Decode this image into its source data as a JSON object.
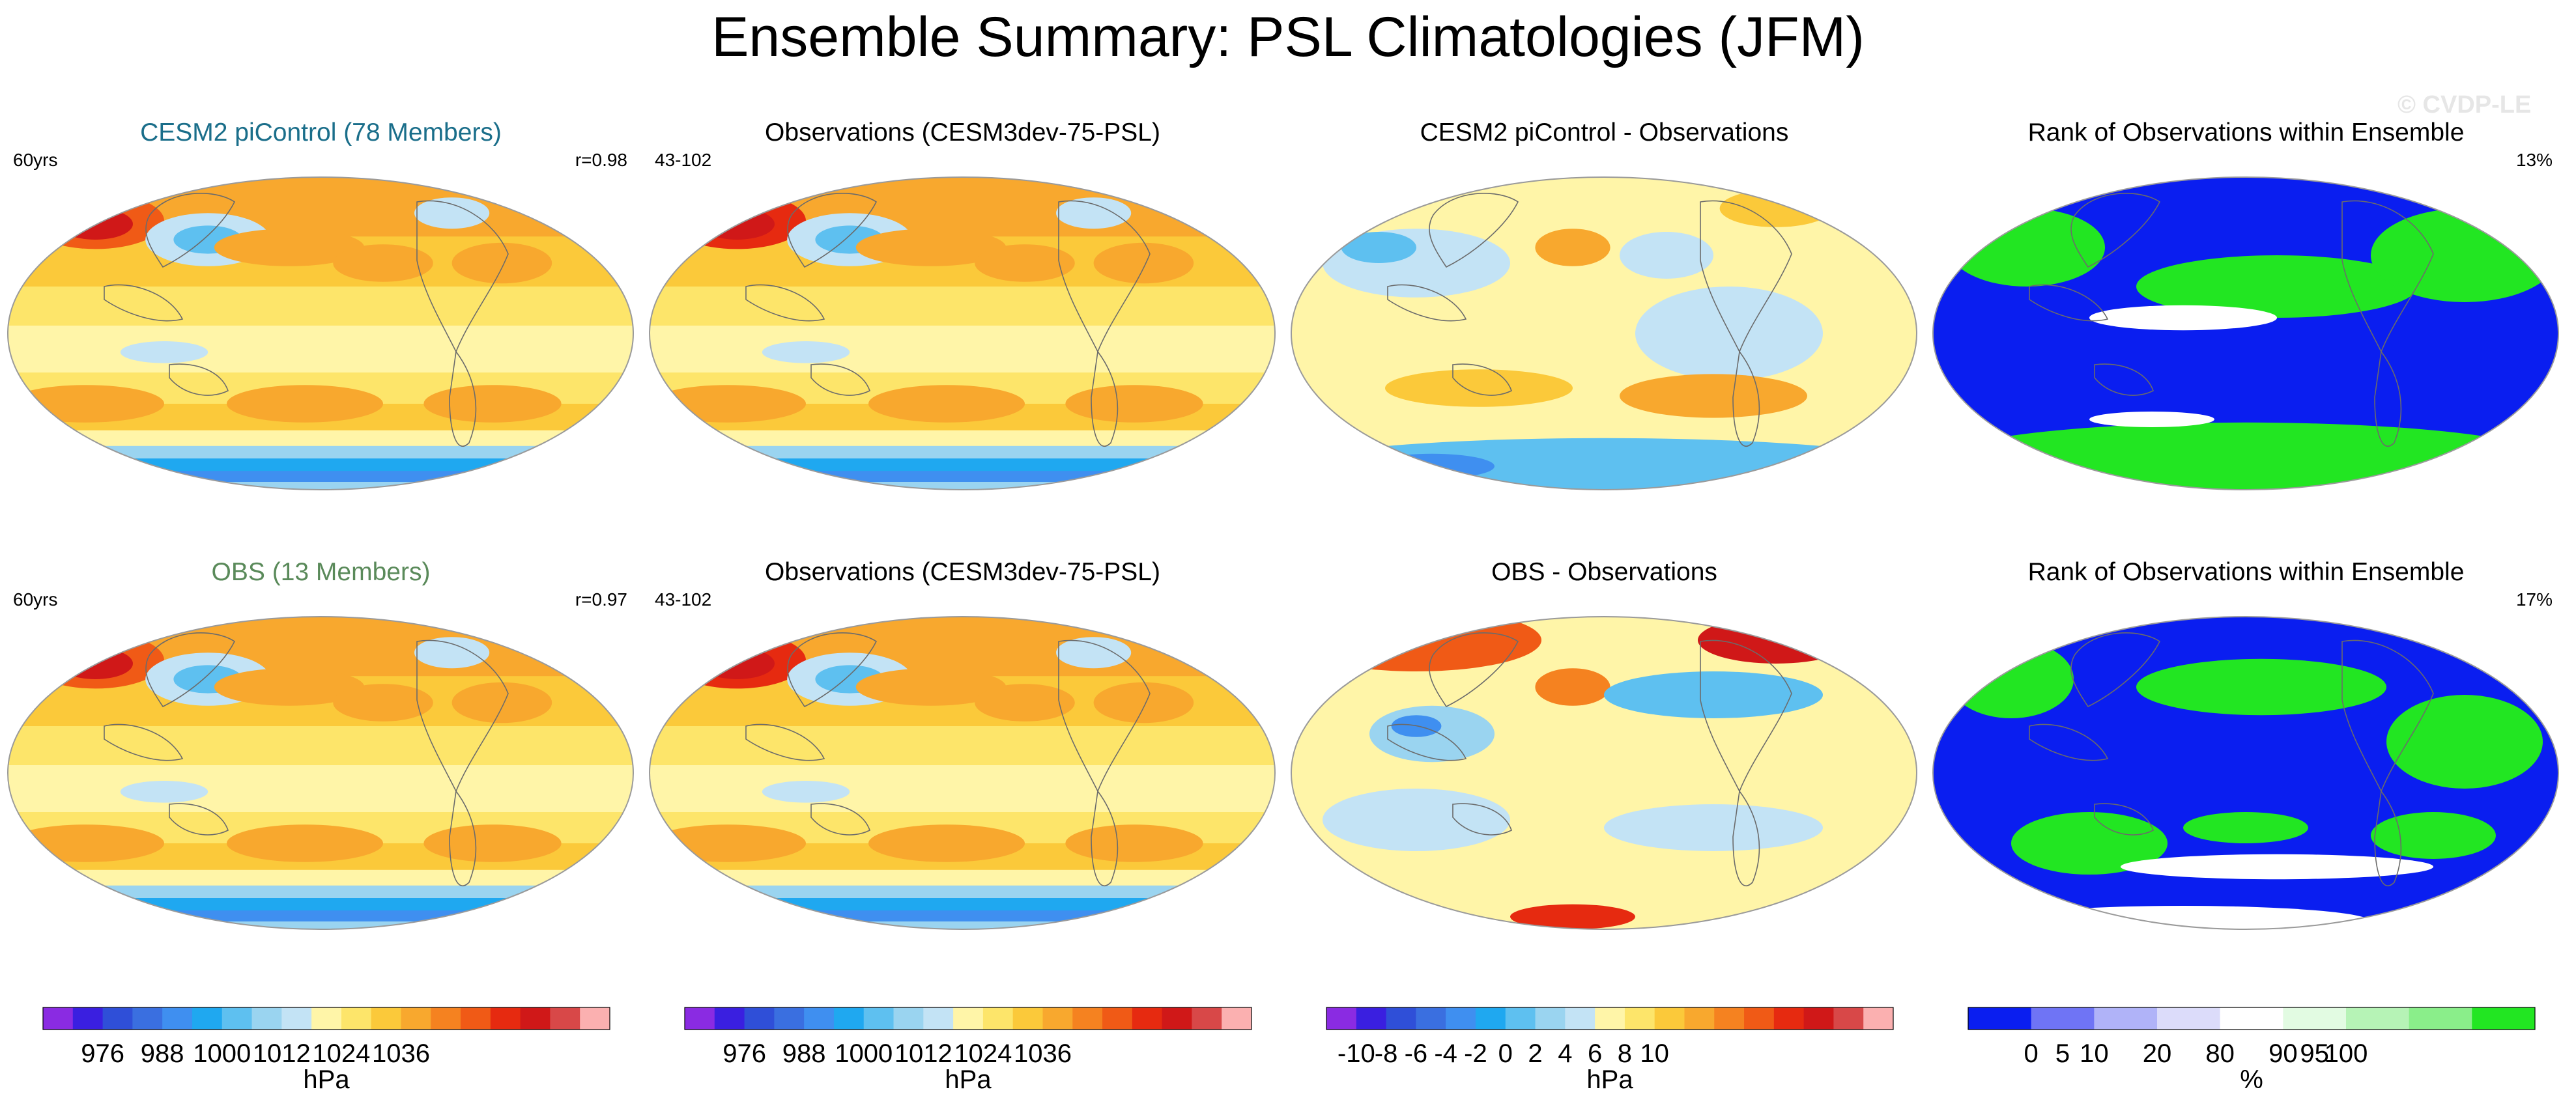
{
  "title": "Ensemble Summary: PSL Climatologies (JFM)",
  "watermark": "© CVDP-LE",
  "colors": {
    "ensemble_title": "#1a6e8a",
    "obs_title": "#5a8a5a",
    "land_outline": "#6b6b6b"
  },
  "panels": [
    {
      "id": "p1",
      "title": "CESM2 piControl (78 Members)",
      "title_color": "#1a6e8a",
      "corner_left": "60yrs",
      "corner_right": "r=0.98",
      "kind": "clim",
      "variant": 0
    },
    {
      "id": "p2",
      "title": "Observations (CESM3dev-75-PSL)",
      "title_color": "#000000",
      "corner_left": "43-102",
      "corner_right": "",
      "kind": "clim",
      "variant": 1
    },
    {
      "id": "p3",
      "title": "CESM2 piControl - Observations",
      "title_color": "#000000",
      "corner_left": "",
      "corner_right": "",
      "kind": "diff",
      "variant": 0
    },
    {
      "id": "p4",
      "title": "Rank of Observations within Ensemble",
      "title_color": "#000000",
      "corner_left": "",
      "corner_right": "13%",
      "kind": "rank",
      "variant": 0
    },
    {
      "id": "p5",
      "title": "OBS (13 Members)",
      "title_color": "#5a8a5a",
      "corner_left": "60yrs",
      "corner_right": "r=0.97",
      "kind": "clim",
      "variant": 2
    },
    {
      "id": "p6",
      "title": "Observations (CESM3dev-75-PSL)",
      "title_color": "#000000",
      "corner_left": "43-102",
      "corner_right": "",
      "kind": "clim",
      "variant": 1
    },
    {
      "id": "p7",
      "title": "OBS - Observations",
      "title_color": "#000000",
      "corner_left": "",
      "corner_right": "",
      "kind": "diff",
      "variant": 1
    },
    {
      "id": "p8",
      "title": "Rank of Observations within Ensemble",
      "title_color": "#000000",
      "corner_left": "",
      "corner_right": "17%",
      "kind": "rank",
      "variant": 1
    }
  ],
  "colorbars": [
    {
      "id": "cb-psl-1",
      "unit": "hPa",
      "colors": [
        "#8a2be2",
        "#3a1fe0",
        "#2f4fd8",
        "#3a6fe0",
        "#3f8ff0",
        "#1fa8f0",
        "#5ec0f0",
        "#9ad4f0",
        "#c3e3f5",
        "#fff5a8",
        "#fde56a",
        "#fbc93a",
        "#f8a82e",
        "#f58220",
        "#f05a16",
        "#e62a10",
        "#d01818",
        "#d84848",
        "#fbb0b0"
      ],
      "tick_labels": [
        "976",
        "988",
        "1000",
        "1012",
        "1024",
        "1036"
      ],
      "tick_boxes": [
        1,
        3,
        5,
        7,
        9,
        11
      ]
    },
    {
      "id": "cb-psl-2",
      "unit": "hPa",
      "colors": [
        "#8a2be2",
        "#3a1fe0",
        "#2f4fd8",
        "#3a6fe0",
        "#3f8ff0",
        "#1fa8f0",
        "#5ec0f0",
        "#9ad4f0",
        "#c3e3f5",
        "#fff5a8",
        "#fde56a",
        "#fbc93a",
        "#f8a82e",
        "#f58220",
        "#f05a16",
        "#e62a10",
        "#d01818",
        "#d84848",
        "#fbb0b0"
      ],
      "tick_labels": [
        "976",
        "988",
        "1000",
        "1012",
        "1024",
        "1036"
      ],
      "tick_boxes": [
        1,
        3,
        5,
        7,
        9,
        11
      ]
    },
    {
      "id": "cb-diff",
      "unit": "hPa",
      "colors": [
        "#8a2be2",
        "#3a1fe0",
        "#2f4fd8",
        "#3a6fe0",
        "#3f8ff0",
        "#1fa8f0",
        "#5ec0f0",
        "#9ad4f0",
        "#c3e3f5",
        "#fff5a8",
        "#fde56a",
        "#fbc93a",
        "#f8a82e",
        "#f58220",
        "#f05a16",
        "#e62a10",
        "#d01818",
        "#d84848",
        "#fbb0b0"
      ],
      "tick_labels": [
        "-10",
        "-8",
        "-6",
        "-4",
        "-2",
        "0",
        "2",
        "4",
        "6",
        "8",
        "10"
      ],
      "tick_boxes": [
        0,
        1,
        2,
        3,
        4,
        5,
        6,
        7,
        8,
        9,
        10
      ]
    },
    {
      "id": "cb-rank",
      "unit": "%",
      "colors": [
        "#0a1ef0",
        "#6f74f5",
        "#b0b3f8",
        "#dcdcfa",
        "#ffffff",
        "#e2fbe2",
        "#b6f3b6",
        "#8aee8a",
        "#22e622"
      ],
      "tick_labels": [
        "0",
        "5",
        "10",
        "20",
        "80",
        "90",
        "95",
        "100"
      ],
      "tick_edges": [
        1,
        1.5,
        2,
        3,
        4,
        5,
        5.5,
        6
      ]
    }
  ],
  "chart_data": [
    {
      "type": "heatmap",
      "panel": "p1",
      "title": "CESM2 piControl (78 Members)",
      "variable": "PSL",
      "season": "JFM",
      "units": "hPa",
      "range": [
        970,
        1045
      ],
      "pattern_correlation": 0.98,
      "period": "60yrs"
    },
    {
      "type": "heatmap",
      "panel": "p2",
      "title": "Observations (CESM3dev-75-PSL)",
      "variable": "PSL",
      "season": "JFM",
      "units": "hPa",
      "range": [
        970,
        1045
      ],
      "period": "43-102"
    },
    {
      "type": "heatmap",
      "panel": "p3",
      "title": "CESM2 piControl - Observations",
      "variable": "PSL difference",
      "units": "hPa",
      "range": [
        -11,
        11
      ]
    },
    {
      "type": "heatmap",
      "panel": "p4",
      "title": "Rank of Observations within Ensemble",
      "units": "%",
      "range": [
        0,
        100
      ],
      "percent_outside_range": 13
    },
    {
      "type": "heatmap",
      "panel": "p5",
      "title": "OBS (13 Members)",
      "variable": "PSL",
      "season": "JFM",
      "units": "hPa",
      "range": [
        970,
        1045
      ],
      "pattern_correlation": 0.97,
      "period": "60yrs"
    },
    {
      "type": "heatmap",
      "panel": "p6",
      "title": "Observations (CESM3dev-75-PSL)",
      "variable": "PSL",
      "season": "JFM",
      "units": "hPa",
      "range": [
        970,
        1045
      ],
      "period": "43-102"
    },
    {
      "type": "heatmap",
      "panel": "p7",
      "title": "OBS - Observations",
      "variable": "PSL difference",
      "units": "hPa",
      "range": [
        -11,
        11
      ]
    },
    {
      "type": "heatmap",
      "panel": "p8",
      "title": "Rank of Observations within Ensemble",
      "units": "%",
      "range": [
        0,
        100
      ],
      "percent_outside_range": 17
    }
  ]
}
